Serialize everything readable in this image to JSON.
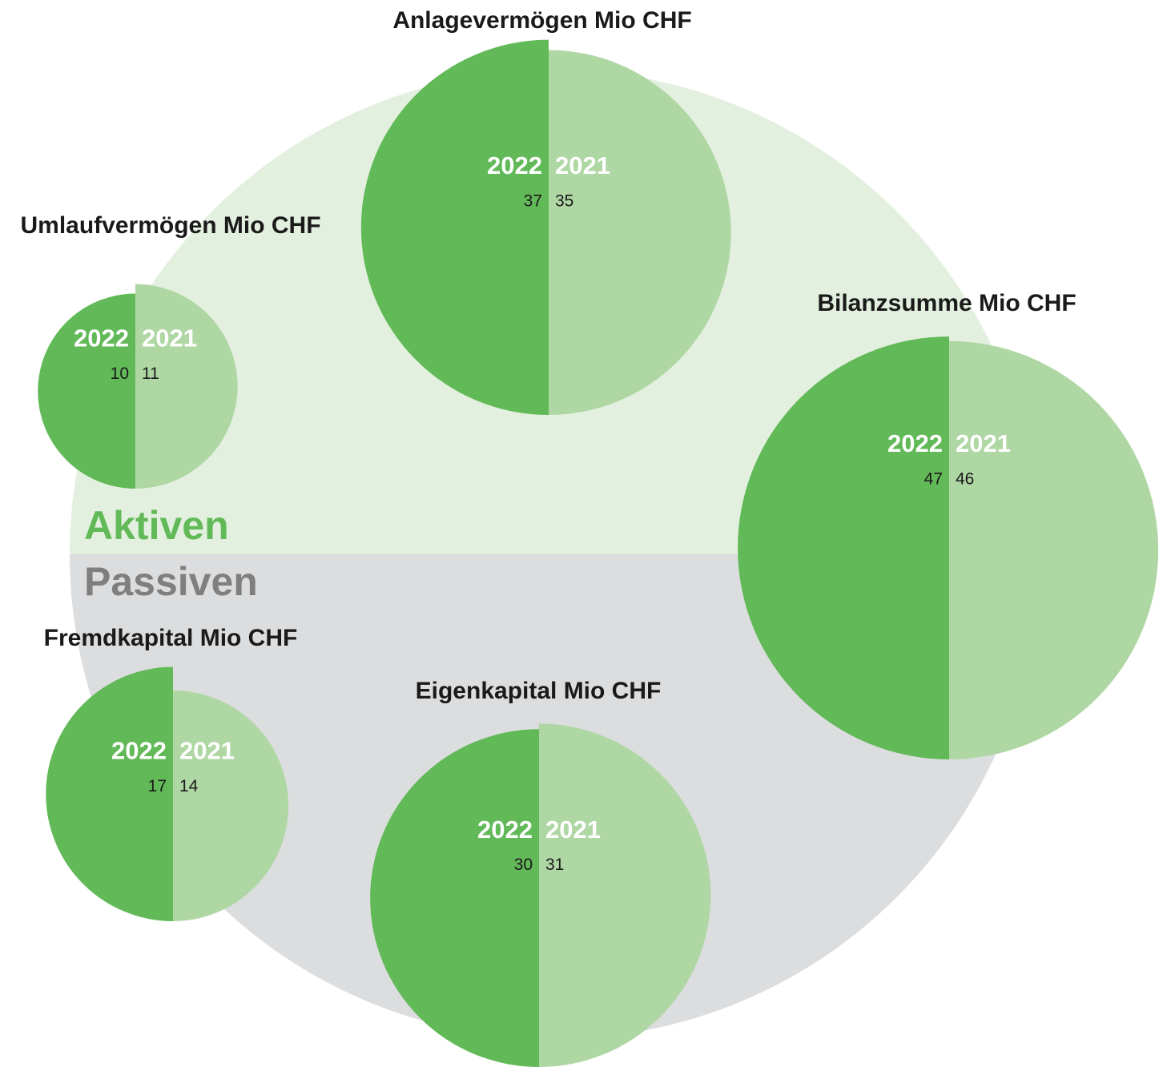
{
  "chart_data": {
    "type": "half-circle",
    "series": [
      {
        "name": "2022",
        "color": "#62b958"
      },
      {
        "name": "2021",
        "color": "#afd7a4"
      }
    ],
    "sections": [
      {
        "label": "Aktiven",
        "color": "#62b958",
        "background": "#e3f0df"
      },
      {
        "label": "Passiven",
        "color": "#7f7f7f",
        "background": "#dcdddf"
      }
    ],
    "groups": [
      {
        "title": "Anlagevermögen Mio CHF",
        "values": [
          37,
          35
        ]
      },
      {
        "title": "Umlaufvermögen Mio CHF",
        "values": [
          10,
          11
        ]
      },
      {
        "title": "Bilanzsumme Mio CHF",
        "values": [
          47,
          46
        ]
      },
      {
        "title": "Fremdkapital Mio CHF",
        "values": [
          17,
          14
        ]
      },
      {
        "title": "Eigenkapital Mio CHF",
        "values": [
          30,
          31
        ]
      }
    ]
  }
}
